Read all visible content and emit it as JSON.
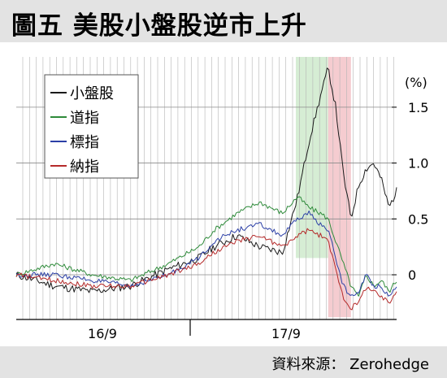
{
  "title": "圖五  美股小盤股逆市上升",
  "source": "資料來源： Zerohedge",
  "colors": {
    "small_cap": "#1a1a1a",
    "dow": "#2e8b3a",
    "sp500": "#2b3fa6",
    "nasdaq": "#b52a2a",
    "green_band": "#cfeacc",
    "red_band": "#f3c3c8",
    "grid": "#b4b4b4"
  },
  "chart_data": {
    "type": "line",
    "unit_label": "(%)",
    "x_tick_labels": [
      "16/9",
      "17/9"
    ],
    "y_ticks": [
      0,
      0.5,
      1.0,
      1.5
    ],
    "y_tick_labels": [
      "0",
      "0.5",
      "1.0",
      "1.5"
    ],
    "ylim": [
      -0.4,
      1.95
    ],
    "legend_position": "top-left",
    "grid": true,
    "highlight_bands": [
      {
        "color": "green",
        "x_range": [
          0.735,
          0.82
        ]
      },
      {
        "color": "red",
        "x_range": [
          0.82,
          0.88
        ]
      }
    ],
    "x": [
      0,
      0.1,
      0.2,
      0.3,
      0.4,
      0.48,
      0.52,
      0.58,
      0.64,
      0.7,
      0.74,
      0.77,
      0.8,
      0.82,
      0.84,
      0.86,
      0.88,
      0.9,
      0.92,
      0.94,
      0.96,
      0.98,
      1.0
    ],
    "series": [
      {
        "name": "小盤股",
        "values": [
          0.0,
          -0.1,
          -0.15,
          -0.1,
          0.05,
          0.15,
          0.25,
          0.35,
          0.25,
          0.2,
          0.7,
          1.2,
          1.6,
          1.85,
          1.5,
          0.9,
          0.5,
          0.8,
          0.95,
          1.0,
          0.85,
          0.6,
          0.75
        ]
      },
      {
        "name": "道指",
        "values": [
          0.0,
          0.1,
          0.0,
          -0.05,
          0.1,
          0.25,
          0.4,
          0.55,
          0.65,
          0.55,
          0.7,
          0.6,
          0.55,
          0.5,
          0.3,
          0.1,
          -0.1,
          -0.2,
          0.0,
          -0.1,
          -0.05,
          -0.15,
          -0.05
        ]
      },
      {
        "name": "標指",
        "values": [
          0.0,
          0.0,
          -0.05,
          -0.1,
          0.0,
          0.15,
          0.3,
          0.4,
          0.45,
          0.35,
          0.5,
          0.55,
          0.45,
          0.4,
          0.15,
          -0.1,
          -0.2,
          -0.15,
          0.0,
          -0.1,
          -0.1,
          -0.2,
          -0.1
        ]
      },
      {
        "name": "納指",
        "values": [
          0.0,
          -0.05,
          -0.1,
          -0.1,
          0.0,
          0.1,
          0.2,
          0.3,
          0.35,
          0.25,
          0.35,
          0.4,
          0.35,
          0.3,
          0.05,
          -0.2,
          -0.3,
          -0.25,
          -0.1,
          -0.15,
          -0.2,
          -0.25,
          -0.15
        ]
      }
    ]
  }
}
